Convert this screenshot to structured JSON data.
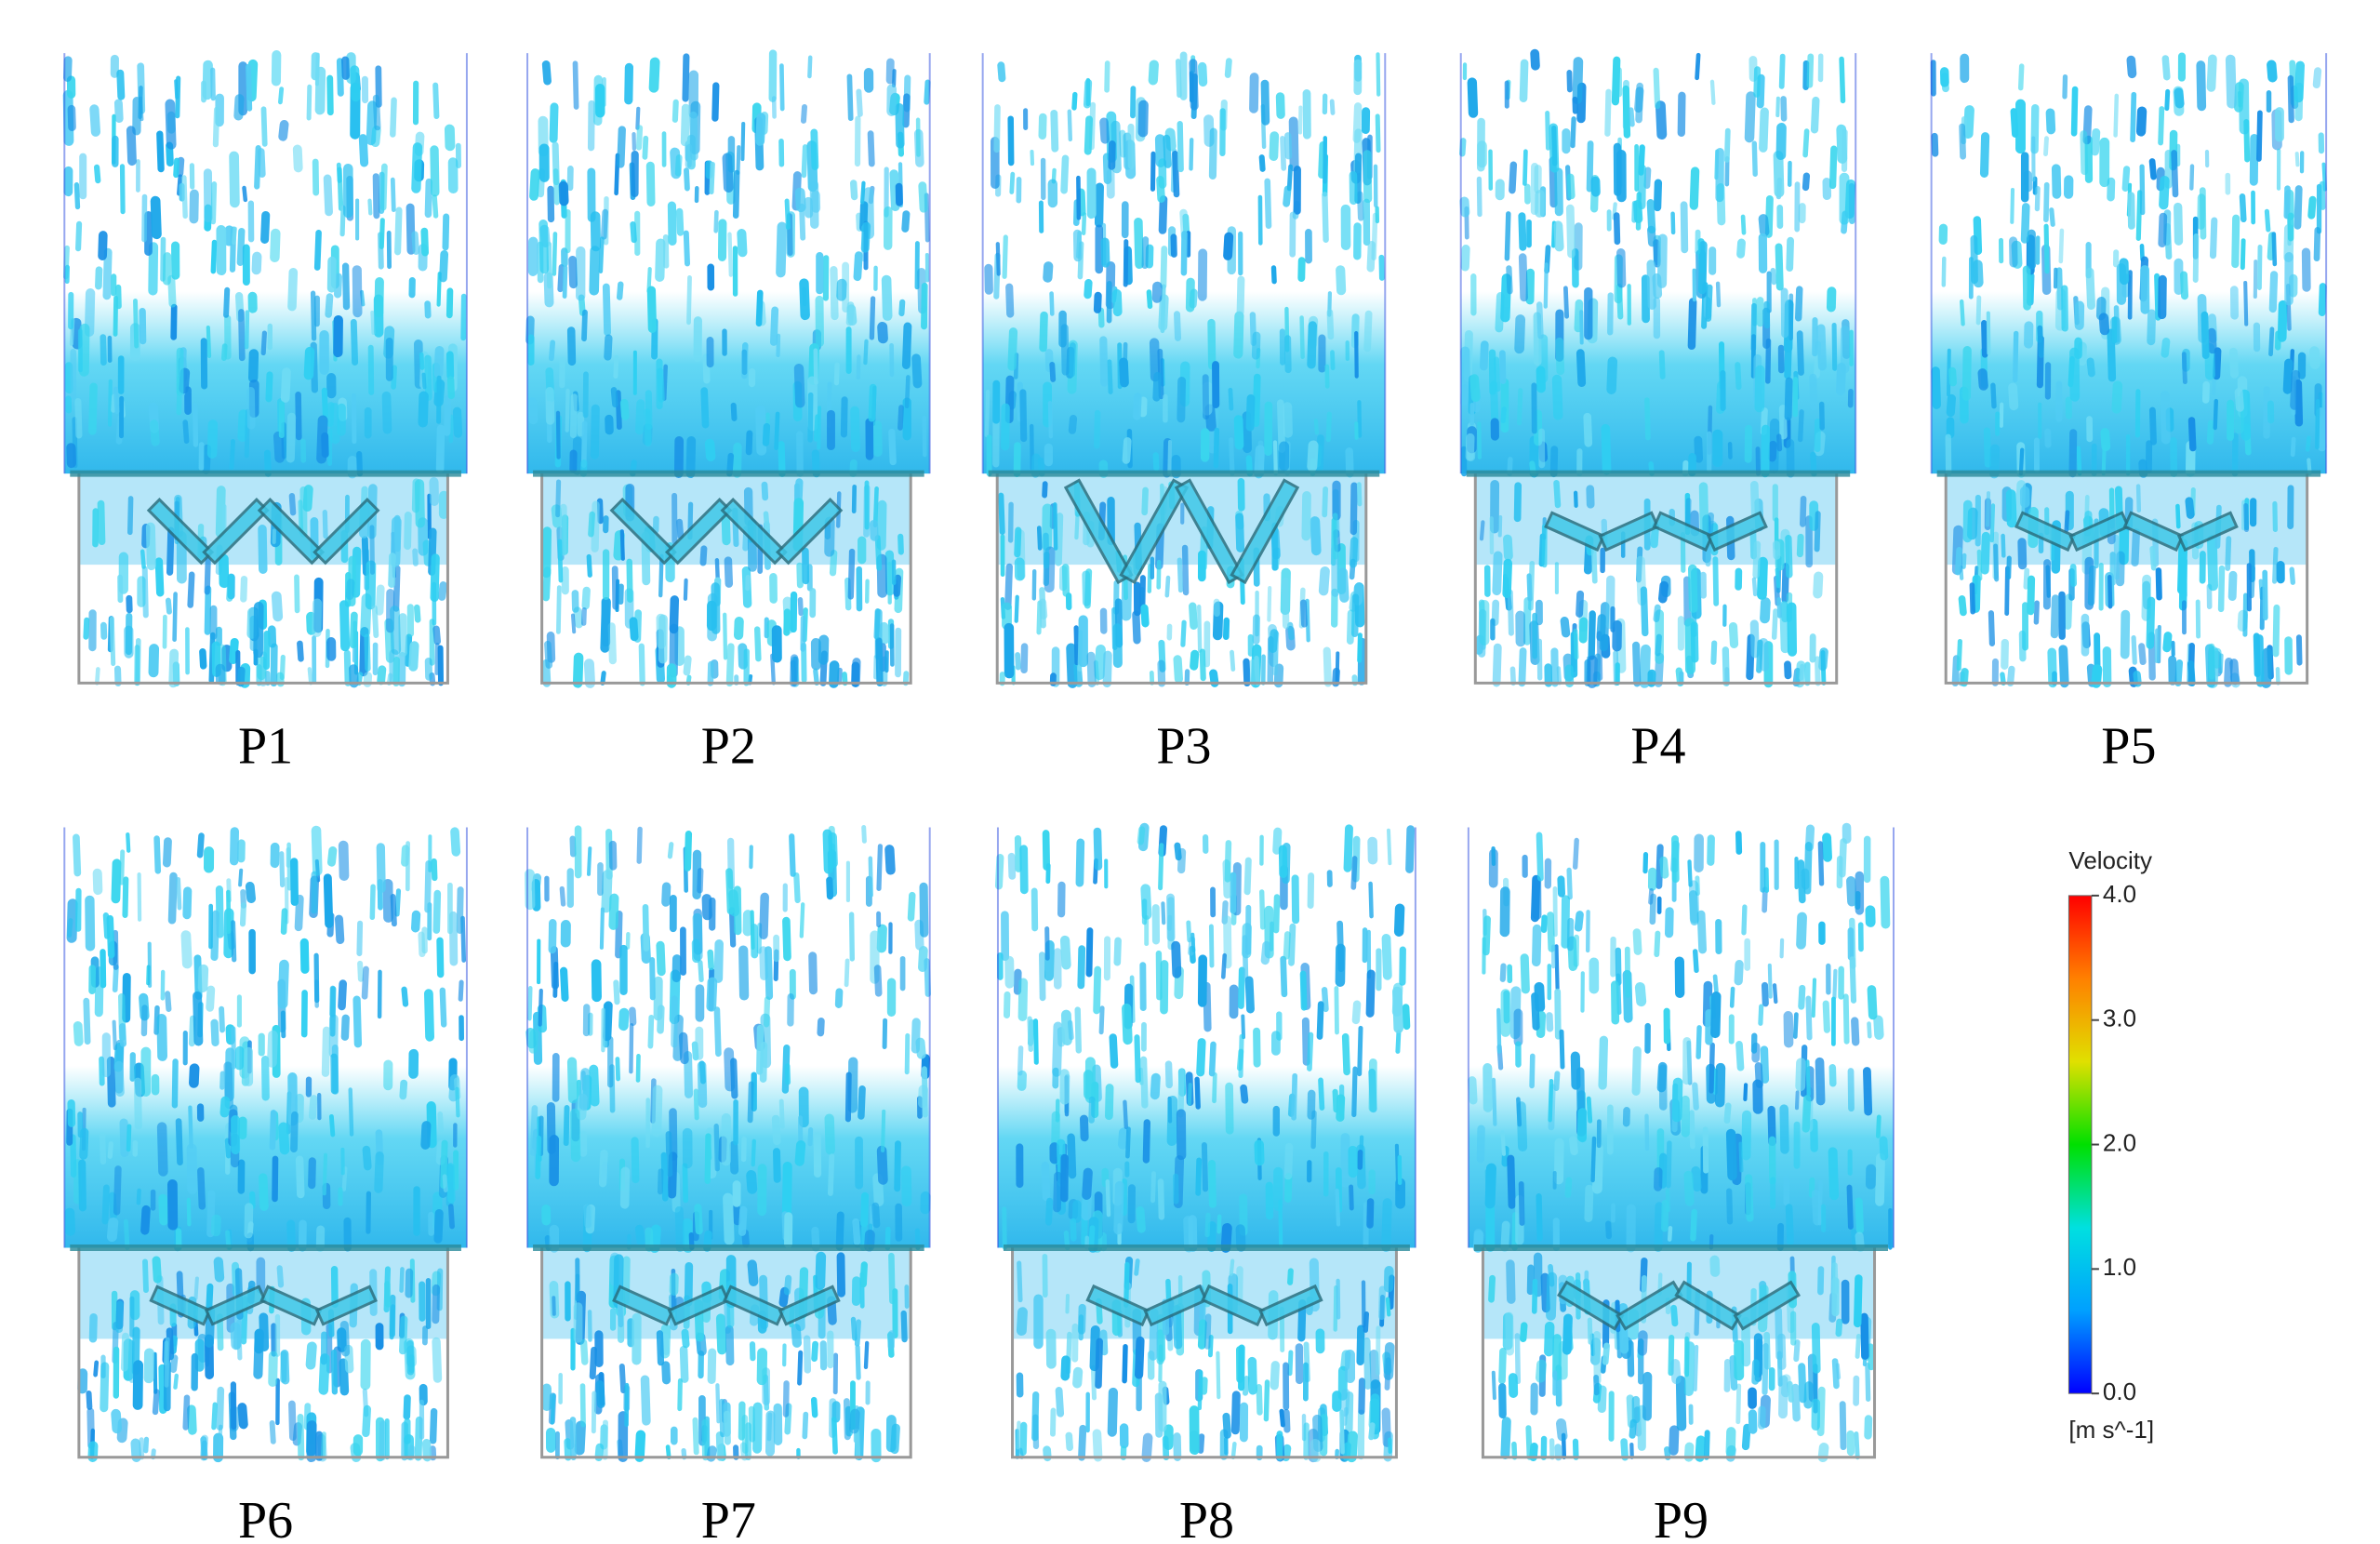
{
  "panels": [
    {
      "label": "P1"
    },
    {
      "label": "P2"
    },
    {
      "label": "P3"
    },
    {
      "label": "P4"
    },
    {
      "label": "P5"
    },
    {
      "label": "P6"
    },
    {
      "label": "P7"
    },
    {
      "label": "P8"
    },
    {
      "label": "P9"
    }
  ],
  "colorbar": {
    "title": "Velocity",
    "unit": "[m s^-1]",
    "lim": [
      0,
      4
    ],
    "ticks": [
      {
        "value": 0,
        "label": "0.0"
      },
      {
        "value": 1,
        "label": "1.0"
      },
      {
        "value": 2,
        "label": "2.0"
      },
      {
        "value": 3,
        "label": "3.0"
      },
      {
        "value": 4,
        "label": "4.0"
      }
    ],
    "colors": [
      "#0000ff",
      "#00a0ff",
      "#00e0e0",
      "#00e000",
      "#e0e000",
      "#ff8000",
      "#ff0000"
    ]
  }
}
